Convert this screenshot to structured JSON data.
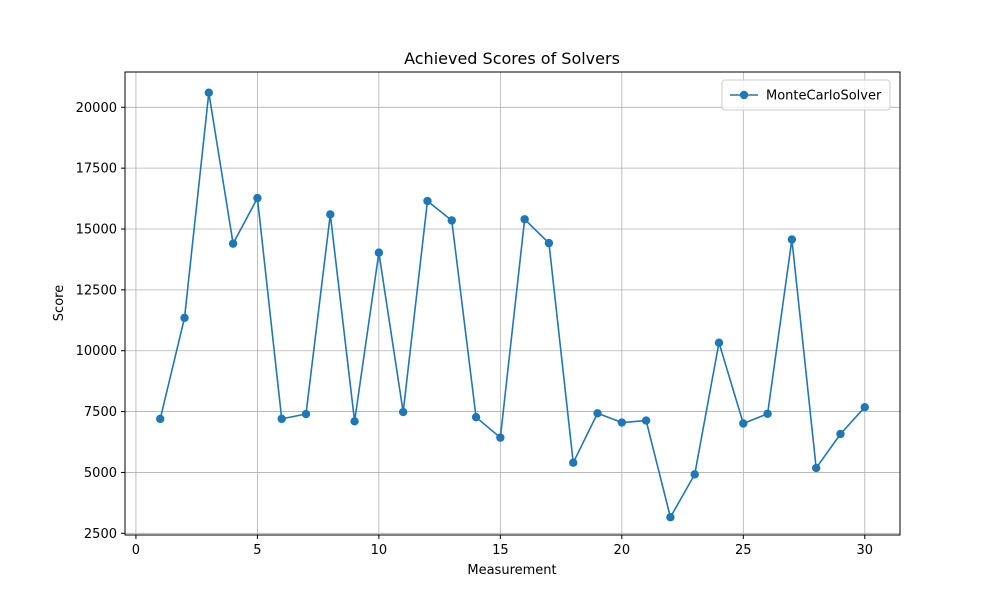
{
  "chart_data": {
    "type": "line",
    "title": "Achieved Scores of Solvers",
    "xlabel": "Measurement",
    "ylabel": "Score",
    "xlim": [
      -0.45,
      31.45
    ],
    "ylim": [
      2430,
      21450
    ],
    "xticks": [
      0,
      5,
      10,
      15,
      20,
      25,
      30
    ],
    "yticks": [
      2500,
      5000,
      7500,
      10000,
      12500,
      15000,
      17500,
      20000
    ],
    "grid": true,
    "legend_position": "top-right",
    "series": [
      {
        "name": "MonteCarloSolver",
        "color": "#1f77b4",
        "marker": "circle",
        "x": [
          1,
          2,
          3,
          4,
          5,
          6,
          7,
          8,
          9,
          10,
          11,
          12,
          13,
          14,
          15,
          16,
          17,
          18,
          19,
          20,
          21,
          22,
          23,
          24,
          25,
          26,
          27,
          28,
          29,
          30
        ],
        "y": [
          7200,
          11350,
          20600,
          14400,
          16270,
          7200,
          7400,
          15600,
          7100,
          14030,
          7480,
          16150,
          15350,
          7270,
          6430,
          15400,
          14420,
          5400,
          7430,
          7050,
          7130,
          3160,
          4920,
          10330,
          7010,
          7410,
          14570,
          5180,
          6580,
          7680
        ]
      }
    ]
  }
}
